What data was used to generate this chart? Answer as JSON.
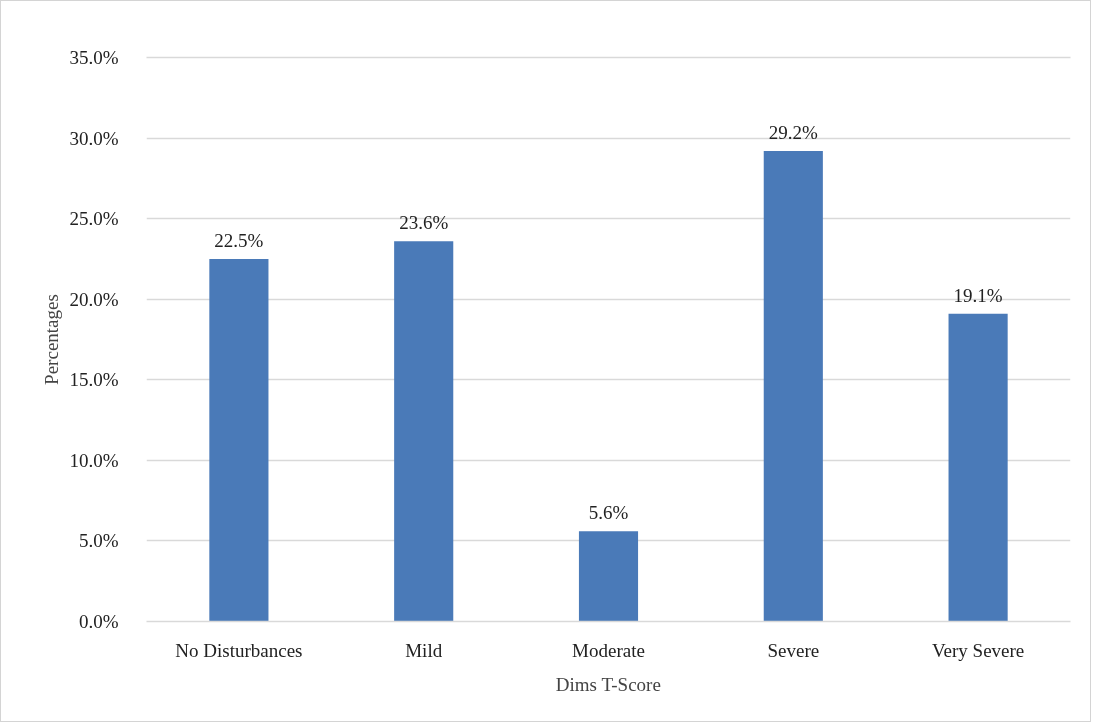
{
  "chart_data": {
    "type": "bar",
    "xlabel": "Dims T-Score",
    "ylabel": "Percentages",
    "categories": [
      "No Disturbances",
      "Mild",
      "Moderate",
      "Severe",
      "Very Severe"
    ],
    "values": [
      22.5,
      23.6,
      5.6,
      29.2,
      19.1
    ],
    "color": "#4a7ab8",
    "value_labels": [
      "22.5%",
      "23.6%",
      "5.6%",
      "29.2%",
      "19.1%"
    ],
    "ylim": [
      0,
      35
    ],
    "yticks": [
      {
        "value": 0,
        "label": "0.0%"
      },
      {
        "value": 5,
        "label": "5.0%"
      },
      {
        "value": 10,
        "label": "10.0%"
      },
      {
        "value": 15,
        "label": "15.0%"
      },
      {
        "value": 20,
        "label": "20.0%"
      },
      {
        "value": 25,
        "label": "25.0%"
      },
      {
        "value": 30,
        "label": "30.0%"
      },
      {
        "value": 35,
        "label": "35.0%"
      }
    ],
    "grid": "y"
  }
}
